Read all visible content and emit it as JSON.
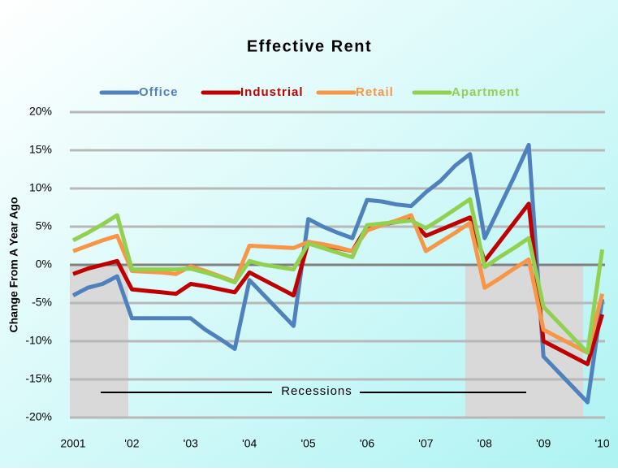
{
  "chart_data": {
    "type": "line",
    "title": "Effective Rent",
    "y_label": "Change From A Year Ago",
    "annotation": "Recessions",
    "categories": [
      "2001",
      null,
      null,
      null,
      "'02",
      null,
      null,
      null,
      "'03",
      null,
      null,
      null,
      "'04",
      null,
      null,
      null,
      "'05",
      null,
      null,
      null,
      "'06",
      null,
      null,
      null,
      "'07",
      null,
      null,
      null,
      "'08",
      null,
      null,
      null,
      "'09",
      null,
      null,
      null,
      "'10"
    ],
    "series": [
      {
        "name": "Office",
        "color": "#4f81bd",
        "values": [
          -4,
          -3,
          -2.5,
          -1.5,
          -7,
          -7,
          -7,
          -7,
          -7,
          -8.5,
          -9.7,
          -11,
          -2,
          -4,
          -6,
          -8,
          6,
          5,
          4.2,
          3.5,
          8.5,
          8.3,
          7.9,
          7.7,
          9.5,
          11,
          13,
          14.5,
          3.5,
          7.5,
          11.5,
          15.7,
          -12,
          -14,
          -16,
          -18,
          -4.5
        ]
      },
      {
        "name": "Industrial",
        "color": "#c00000",
        "values": [
          -1.2,
          -0.5,
          0,
          0.5,
          -3.2,
          -3.4,
          -3.6,
          -3.8,
          -2.5,
          -2.8,
          -3.2,
          -3.6,
          -1,
          -2,
          -3,
          -4,
          3,
          2.6,
          2.2,
          1.8,
          5,
          5.3,
          5.6,
          6,
          3.8,
          4.6,
          5.4,
          6.2,
          0.5,
          3,
          5.5,
          8,
          -10,
          -11,
          -12,
          -13,
          -6.5
        ]
      },
      {
        "name": "Retail",
        "color": "#f79646",
        "values": [
          1.8,
          2.5,
          3.2,
          3.8,
          -0.8,
          -0.9,
          -1,
          -1.2,
          -0.2,
          -0.8,
          -1.5,
          -2.2,
          2.5,
          2.4,
          2.3,
          2.2,
          3,
          2.7,
          2.3,
          1.8,
          4.5,
          5.2,
          5.8,
          6.5,
          1.8,
          3,
          4.2,
          5.5,
          -3,
          -1.8,
          -0.5,
          0.7,
          -8.5,
          -9.5,
          -10.5,
          -11.5,
          -3.8
        ]
      },
      {
        "name": "Apartment",
        "color": "#92d050",
        "values": [
          3.2,
          4.2,
          5.3,
          6.5,
          -0.6,
          -0.6,
          -0.6,
          -0.6,
          -0.5,
          -1,
          -1.6,
          -2.3,
          0.5,
          0,
          -0.3,
          -0.6,
          2.8,
          2.2,
          1.6,
          1,
          5.2,
          5.4,
          5.6,
          5.8,
          4.8,
          6,
          7.3,
          8.6,
          -0.3,
          1,
          2.2,
          3.5,
          -5.5,
          -7.5,
          -9.5,
          -11.5,
          2
        ]
      }
    ],
    "ylim": [
      -20,
      20
    ],
    "yticks": [
      {
        "value": -20,
        "label": "-20%"
      },
      {
        "value": -15,
        "label": "-15%"
      },
      {
        "value": -10,
        "label": "-10%"
      },
      {
        "value": -5,
        "label": "-5%"
      },
      {
        "value": 0,
        "label": "0%"
      },
      {
        "value": 5,
        "label": "5%"
      },
      {
        "value": 10,
        "label": "10%"
      },
      {
        "value": 15,
        "label": "15%"
      },
      {
        "value": 20,
        "label": "20%"
      }
    ],
    "grid": true
  }
}
